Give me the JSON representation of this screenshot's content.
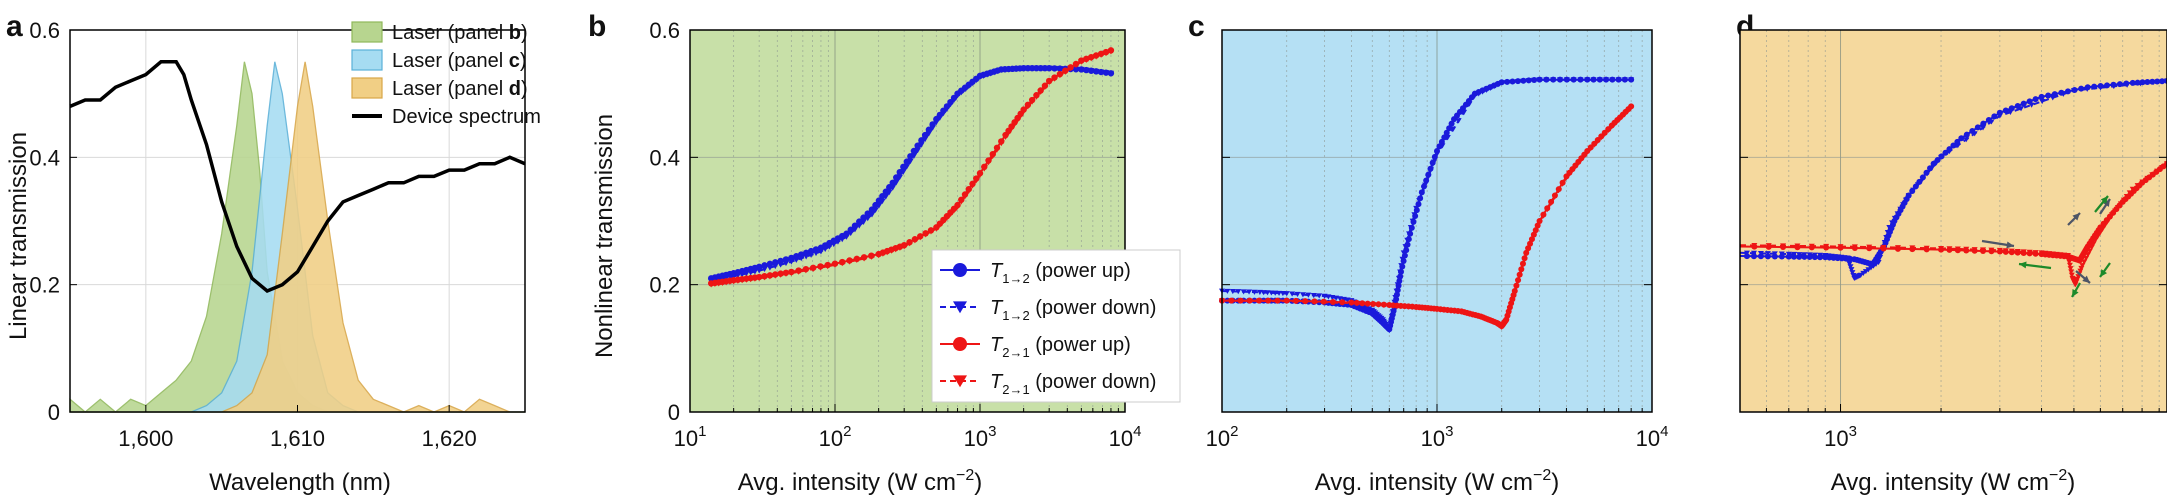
{
  "chart_data": [
    {
      "panel": "a",
      "type": "area",
      "xlabel": "Wavelength (nm)",
      "ylabel": "Linear transmission",
      "xlim": [
        1595,
        1625
      ],
      "ylim": [
        0,
        0.6
      ],
      "xticks": [
        1600,
        1610,
        1620
      ],
      "xtick_labels": [
        "1,600",
        "1,610",
        "1,620"
      ],
      "yticks": [
        0,
        0.2,
        0.4,
        0.6
      ],
      "ytick_labels": [
        "0",
        "0.2",
        "0.4",
        "0.6"
      ],
      "grid": true,
      "legend": "top-right",
      "series": [
        {
          "name": "Laser (panel ",
          "name_bold": "b",
          "name_end": ")",
          "color": "#8fb85a",
          "fill": "#b7d58f",
          "x": [
            1595,
            1596,
            1597,
            1598,
            1599,
            1600,
            1601,
            1602,
            1603,
            1604,
            1605,
            1606,
            1606.5,
            1607,
            1607.5,
            1608,
            1609,
            1610,
            1611,
            1612,
            1613,
            1614,
            1615,
            1616,
            1617,
            1618,
            1619,
            1620,
            1621,
            1622,
            1623,
            1624,
            1625
          ],
          "y": [
            0.02,
            0.0,
            0.02,
            0.0,
            0.02,
            0.01,
            0.03,
            0.05,
            0.08,
            0.15,
            0.28,
            0.45,
            0.55,
            0.5,
            0.38,
            0.22,
            0.08,
            0.03,
            0.01,
            0.0,
            0.0,
            0.0,
            0.0,
            0.0,
            0.0,
            0.0,
            0.0,
            0.0,
            0.0,
            0.0,
            0.0,
            0.0,
            0.0
          ]
        },
        {
          "name": "Laser (panel ",
          "name_bold": "c",
          "name_end": ")",
          "color": "#5ab0d8",
          "fill": "#a6dcf2",
          "x": [
            1595,
            1600,
            1603,
            1604,
            1605,
            1606,
            1607,
            1608,
            1608.5,
            1609,
            1610,
            1611,
            1612,
            1613,
            1614,
            1616,
            1620,
            1625
          ],
          "y": [
            0,
            0,
            0.0,
            0.01,
            0.03,
            0.08,
            0.22,
            0.45,
            0.55,
            0.5,
            0.32,
            0.12,
            0.03,
            0.01,
            0.0,
            0.0,
            0.0,
            0.0
          ]
        },
        {
          "name": "Laser (panel ",
          "name_bold": "d",
          "name_end": ")",
          "color": "#d8a647",
          "fill": "#f1cf85",
          "x": [
            1595,
            1604,
            1605,
            1606,
            1607,
            1608,
            1609,
            1610,
            1610.5,
            1611,
            1612,
            1613,
            1614,
            1615,
            1616,
            1617,
            1618,
            1619,
            1620,
            1621,
            1622,
            1623,
            1624,
            1625
          ],
          "y": [
            0,
            0,
            0.0,
            0.01,
            0.03,
            0.09,
            0.28,
            0.48,
            0.55,
            0.48,
            0.3,
            0.14,
            0.05,
            0.02,
            0.01,
            0.0,
            0.01,
            0.0,
            0.01,
            0.0,
            0.02,
            0.01,
            0.0,
            0.0
          ]
        },
        {
          "name": "Device spectrum",
          "color": "#000000",
          "x": [
            1595,
            1596,
            1597,
            1598,
            1599,
            1600,
            1601,
            1601.5,
            1602,
            1602.5,
            1603,
            1604,
            1605,
            1606,
            1607,
            1608,
            1609,
            1610,
            1611,
            1612,
            1613,
            1614,
            1615,
            1616,
            1617,
            1618,
            1619,
            1620,
            1621,
            1622,
            1623,
            1624,
            1625
          ],
          "y": [
            0.48,
            0.49,
            0.49,
            0.51,
            0.52,
            0.53,
            0.55,
            0.55,
            0.55,
            0.53,
            0.49,
            0.42,
            0.33,
            0.26,
            0.21,
            0.19,
            0.2,
            0.22,
            0.26,
            0.3,
            0.33,
            0.34,
            0.35,
            0.36,
            0.36,
            0.37,
            0.37,
            0.38,
            0.38,
            0.39,
            0.39,
            0.4,
            0.39
          ]
        }
      ]
    },
    {
      "panel": "b",
      "type": "line",
      "background": "#c8e0a8",
      "xlabel": "Avg. intensity (W cm",
      "xlabel_sup": "−2",
      "xlabel_end": ")",
      "ylabel": "Nonlinear transmission",
      "xscale": "log",
      "xlim": [
        10,
        10000
      ],
      "ylim": [
        0,
        0.6
      ],
      "xtick_exponents": [
        1,
        2,
        3,
        4
      ],
      "yticks": [
        0,
        0.2,
        0.4,
        0.6
      ],
      "ytick_labels": [
        "0",
        "0.2",
        "0.4",
        "0.6"
      ],
      "legend": "lower-right",
      "series": [
        {
          "name": "T",
          "sub": "1→2",
          "suffix": " (power up)",
          "color": "#1a1adb",
          "marker": "circle",
          "dash": false,
          "x": [
            14,
            20,
            30,
            50,
            80,
            120,
            180,
            250,
            350,
            500,
            700,
            1000,
            1400,
            2000,
            3000,
            5000,
            8000
          ],
          "y": [
            0.21,
            0.218,
            0.228,
            0.242,
            0.258,
            0.28,
            0.318,
            0.36,
            0.41,
            0.46,
            0.5,
            0.528,
            0.538,
            0.54,
            0.54,
            0.538,
            0.532
          ]
        },
        {
          "name": "T",
          "sub": "1→2",
          "suffix": " (power down)",
          "color": "#1a1adb",
          "marker": "triangle",
          "dash": true,
          "x": [
            14,
            20,
            30,
            50,
            80,
            120,
            180,
            250,
            350,
            500,
            700,
            1000,
            1400,
            2000,
            3000,
            5000,
            8000
          ],
          "y": [
            0.205,
            0.213,
            0.222,
            0.236,
            0.252,
            0.275,
            0.31,
            0.352,
            0.402,
            0.455,
            0.497,
            0.526,
            0.537,
            0.54,
            0.54,
            0.538,
            0.532
          ]
        },
        {
          "name": "T",
          "sub": "2→1",
          "suffix": " (power up)",
          "color": "#ee1515",
          "marker": "circle",
          "dash": false,
          "x": [
            14,
            20,
            30,
            50,
            100,
            200,
            300,
            500,
            700,
            1000,
            1500,
            2000,
            3000,
            5000,
            8000
          ],
          "y": [
            0.202,
            0.207,
            0.212,
            0.22,
            0.233,
            0.248,
            0.262,
            0.29,
            0.325,
            0.375,
            0.435,
            0.475,
            0.52,
            0.552,
            0.568
          ]
        },
        {
          "name": "T",
          "sub": "2→1",
          "suffix": " (power down)",
          "color": "#ee1515",
          "marker": "triangle",
          "dash": true,
          "x": [
            14,
            20,
            30,
            50,
            100,
            200,
            300,
            500,
            700,
            1000,
            1500,
            2000,
            3000,
            5000,
            8000
          ],
          "y": [
            0.2,
            0.205,
            0.21,
            0.218,
            0.231,
            0.246,
            0.26,
            0.288,
            0.322,
            0.372,
            0.432,
            0.472,
            0.518,
            0.55,
            0.566
          ]
        }
      ]
    },
    {
      "panel": "c",
      "type": "line",
      "background": "#b5e0f4",
      "xlabel": "Avg. intensity (W cm",
      "xlabel_sup": "−2",
      "xlabel_end": ")",
      "xscale": "log",
      "xlim": [
        100,
        10000
      ],
      "ylim": [
        0,
        0.6
      ],
      "xtick_exponents": [
        2,
        3,
        4
      ],
      "yticks": [
        0,
        0.2,
        0.4,
        0.6
      ],
      "series": [
        {
          "name": "T₁→₂ (power up)",
          "color": "#1a1adb",
          "marker": "circle",
          "dash": false,
          "x": [
            100,
            150,
            200,
            300,
            400,
            500,
            560,
            600,
            640,
            680,
            750,
            850,
            1000,
            1200,
            1500,
            2000,
            3000,
            5000,
            8000
          ],
          "y": [
            0.175,
            0.175,
            0.175,
            0.172,
            0.168,
            0.155,
            0.14,
            0.13,
            0.17,
            0.22,
            0.28,
            0.345,
            0.41,
            0.46,
            0.5,
            0.518,
            0.522,
            0.522,
            0.522
          ]
        },
        {
          "name": "T₁→₂ (power down)",
          "color": "#1a1adb",
          "marker": "triangle",
          "dash": true,
          "x": [
            100,
            150,
            200,
            300,
            400,
            500,
            560,
            600,
            640,
            700,
            800,
            1000,
            1500,
            2000,
            3000,
            5000,
            8000
          ],
          "y": [
            0.19,
            0.188,
            0.186,
            0.182,
            0.175,
            0.16,
            0.145,
            0.128,
            0.18,
            0.25,
            0.32,
            0.405,
            0.497,
            0.517,
            0.522,
            0.522,
            0.522
          ]
        },
        {
          "name": "T₂→₁ (power up)",
          "color": "#ee1515",
          "marker": "circle",
          "dash": false,
          "x": [
            100,
            200,
            400,
            600,
            800,
            1000,
            1300,
            1600,
            1900,
            2000,
            2100,
            2300,
            2600,
            3000,
            4000,
            5000,
            6500,
            8000
          ],
          "y": [
            0.175,
            0.175,
            0.172,
            0.168,
            0.165,
            0.162,
            0.158,
            0.15,
            0.14,
            0.135,
            0.145,
            0.19,
            0.25,
            0.3,
            0.37,
            0.41,
            0.45,
            0.48
          ]
        },
        {
          "name": "T₂→₁ (power down)",
          "color": "#ee1515",
          "marker": "triangle",
          "dash": true,
          "x": [
            100,
            200,
            400,
            600,
            800,
            1000,
            1300,
            1600,
            1900,
            2000,
            2100,
            2300,
            2600,
            3000,
            4000,
            5000,
            6500,
            8000
          ],
          "y": [
            0.175,
            0.174,
            0.171,
            0.167,
            0.164,
            0.161,
            0.157,
            0.149,
            0.139,
            0.133,
            0.143,
            0.188,
            0.248,
            0.298,
            0.368,
            0.408,
            0.448,
            0.478
          ]
        }
      ]
    },
    {
      "panel": "d",
      "type": "line",
      "background": "#f5d99e",
      "xlabel": "Avg. intensity (W cm",
      "xlabel_sup": "−2",
      "xlabel_end": ")",
      "xscale": "log",
      "xlim": [
        500,
        9500
      ],
      "ylim": [
        0,
        0.6
      ],
      "xtick_exponents": [
        3
      ],
      "series": [
        {
          "name": "T₁→₂ (power up)",
          "color": "#1a1adb",
          "marker": "circle",
          "dash": false,
          "x": [
            500,
            700,
            900,
            1100,
            1250,
            1350,
            1450,
            1600,
            1900,
            2300,
            3000,
            4000,
            5500,
            7500,
            9500
          ],
          "y": [
            0.245,
            0.244,
            0.243,
            0.24,
            0.232,
            0.26,
            0.3,
            0.34,
            0.39,
            0.43,
            0.47,
            0.495,
            0.51,
            0.517,
            0.52
          ]
        },
        {
          "name": "T₁→₂ (power down)",
          "color": "#1a1adb",
          "marker": "triangle",
          "dash": true,
          "x": [
            500,
            700,
            900,
            1050,
            1100,
            1150,
            1300,
            1400,
            1600,
            2000,
            3000,
            5000,
            9500
          ],
          "y": [
            0.25,
            0.248,
            0.246,
            0.242,
            0.21,
            0.215,
            0.235,
            0.29,
            0.34,
            0.4,
            0.465,
            0.505,
            0.52
          ]
        },
        {
          "name": "T₂→₁ (power up)",
          "color": "#ee1515",
          "marker": "circle",
          "dash": false,
          "x": [
            500,
            1000,
            2000,
            3000,
            4000,
            4800,
            5200,
            5500,
            6000,
            7000,
            8000,
            9500
          ],
          "y": [
            0.26,
            0.258,
            0.255,
            0.252,
            0.248,
            0.244,
            0.238,
            0.26,
            0.29,
            0.33,
            0.36,
            0.39
          ]
        },
        {
          "name": "T₂→₁ (power down)",
          "color": "#ee1515",
          "marker": "triangle",
          "dash": true,
          "x": [
            500,
            1000,
            2000,
            3000,
            4000,
            4800,
            4950,
            5050,
            5300,
            5800,
            6500,
            7500,
            9500
          ],
          "y": [
            0.262,
            0.26,
            0.257,
            0.254,
            0.25,
            0.246,
            0.21,
            0.2,
            0.23,
            0.27,
            0.31,
            0.35,
            0.39
          ]
        }
      ]
    }
  ],
  "panel_labels": [
    "a",
    "b",
    "c",
    "d"
  ]
}
